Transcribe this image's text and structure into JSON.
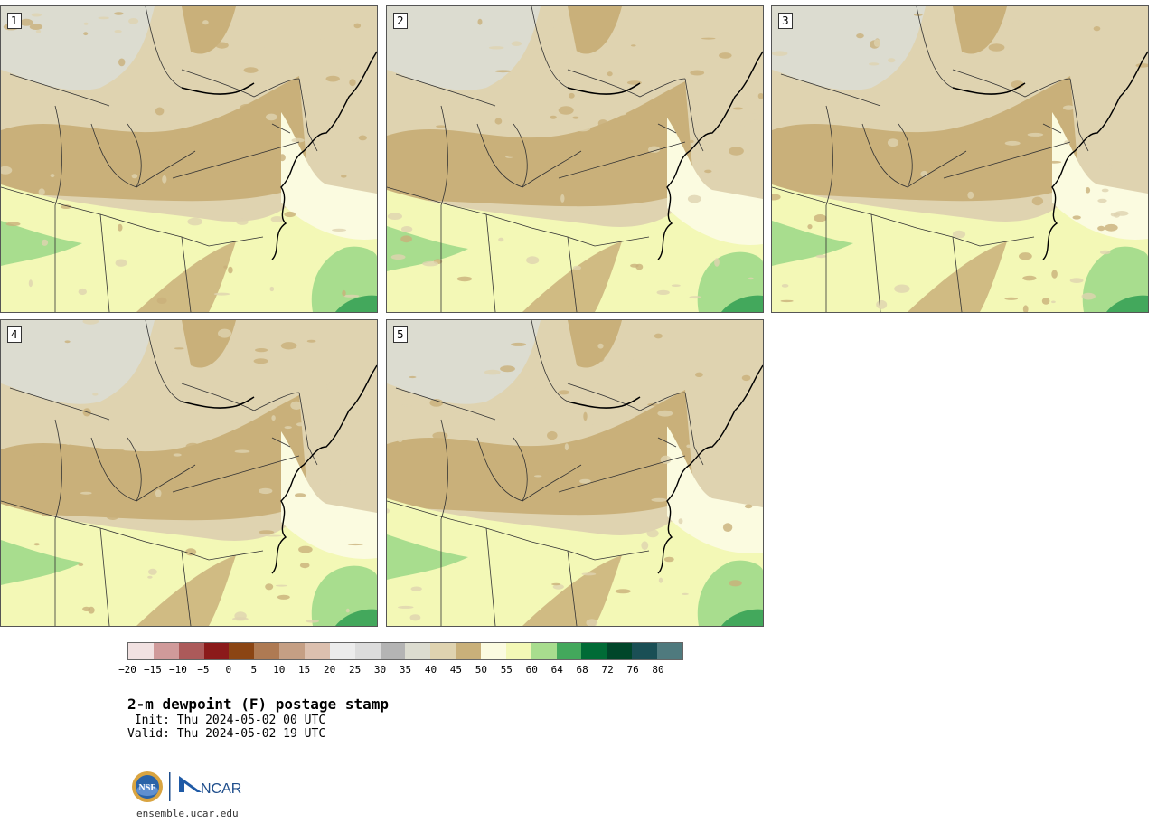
{
  "panels": [
    {
      "label": "1"
    },
    {
      "label": "2"
    },
    {
      "label": "3"
    },
    {
      "label": "4"
    },
    {
      "label": "5"
    }
  ],
  "colorbar": {
    "colors": [
      "#f1e1e1",
      "#d09a9a",
      "#ac5a5a",
      "#8b1a1a",
      "#8b4513",
      "#ae7a53",
      "#c59f84",
      "#dcc0af",
      "#ececec",
      "#dcdcdc",
      "#b4b4b4",
      "#dcdcd0",
      "#dfd3b0",
      "#c9b07a",
      "#fbfbe0",
      "#f3f8b6",
      "#a8dd8e",
      "#43a85c",
      "#006b36",
      "#00462a",
      "#1a4f55",
      "#4f7a7e"
    ],
    "tick_labels": [
      "−20",
      "−15",
      "−10",
      "−5",
      "0",
      "5",
      "10",
      "15",
      "20",
      "25",
      "30",
      "35",
      "40",
      "45",
      "50",
      "55",
      "60",
      "64",
      "68",
      "72",
      "76",
      "80"
    ]
  },
  "title": {
    "main": "2-m dewpoint (F) postage stamp",
    "init": " Init: Thu 2024-05-02 00 UTC",
    "valid": "Valid: Thu 2024-05-02 19 UTC"
  },
  "logos": {
    "nsf": "NSF",
    "ncar": "NCAR"
  },
  "footer": {
    "url": "ensemble.ucar.edu"
  }
}
